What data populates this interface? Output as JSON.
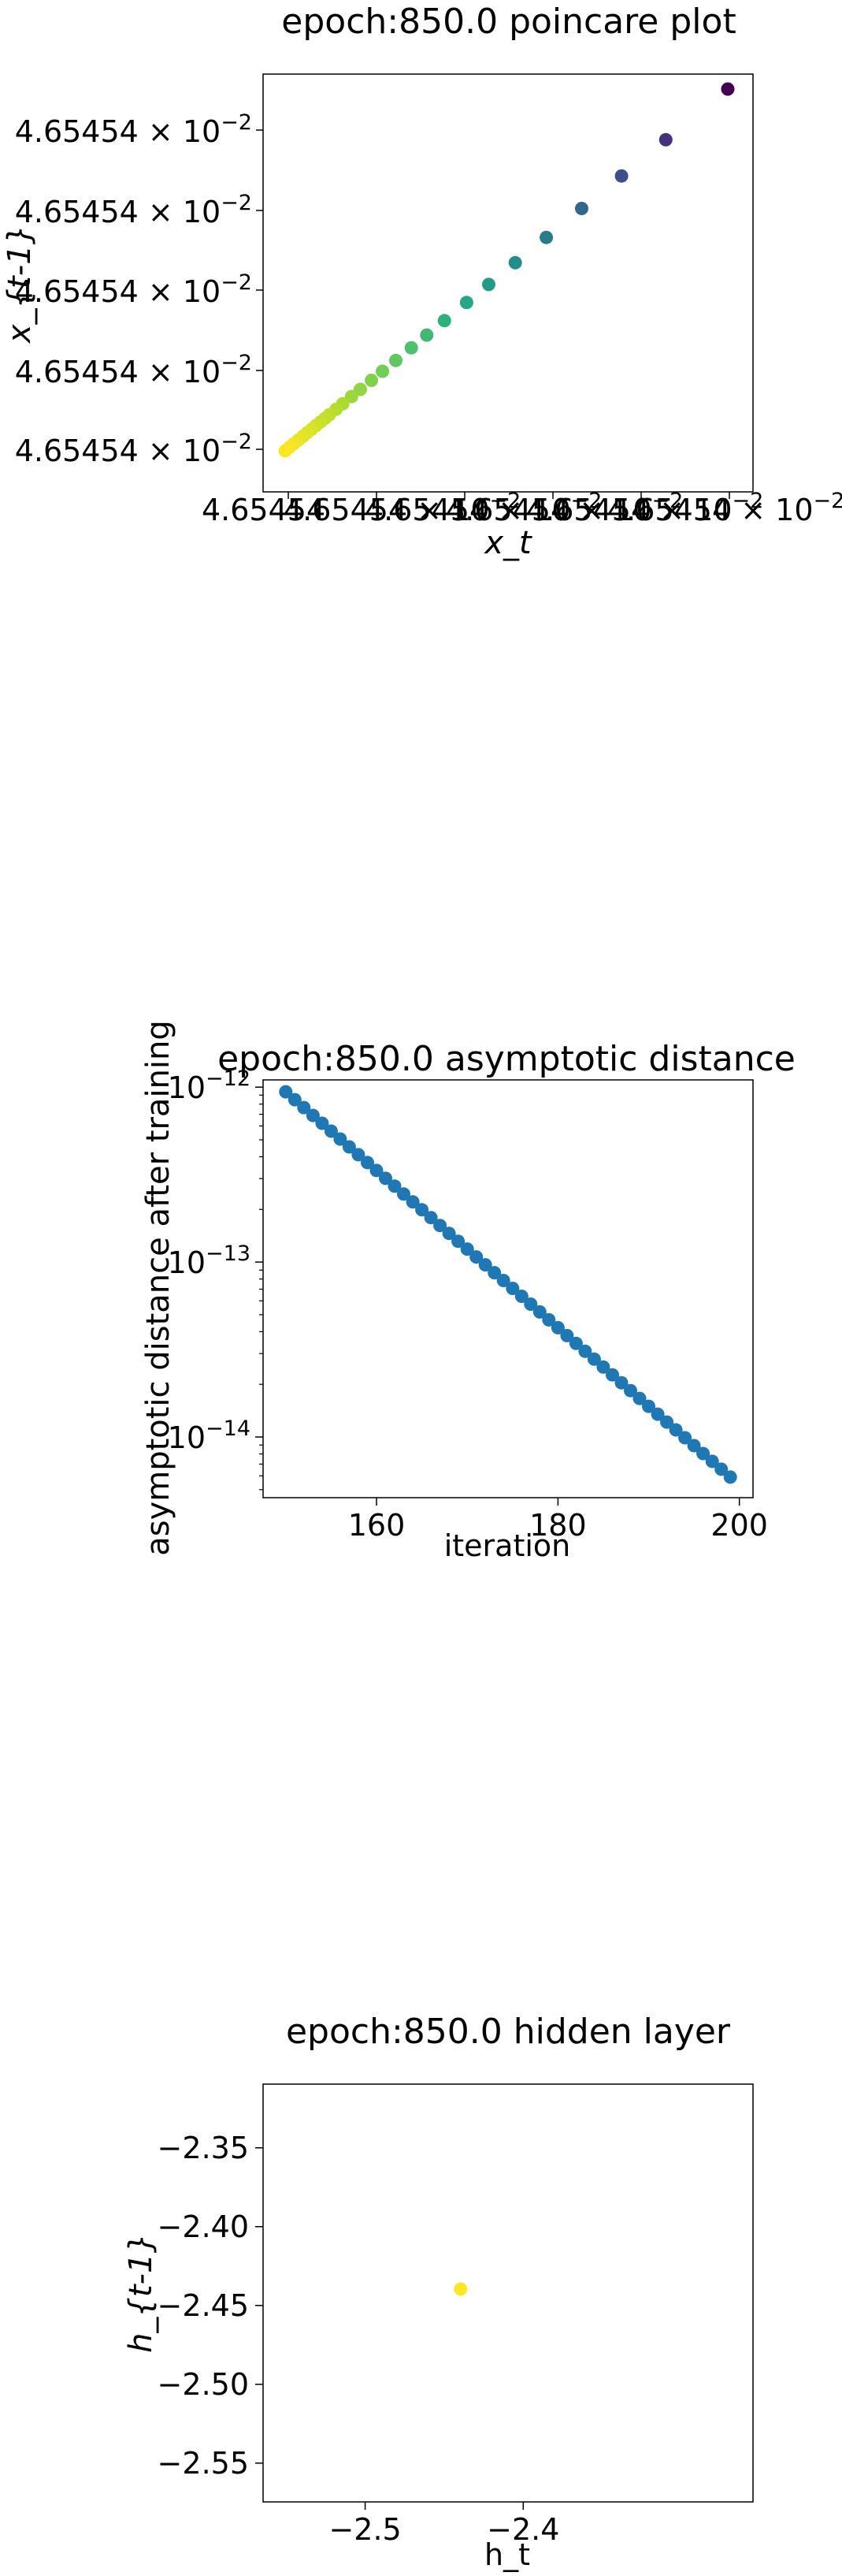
{
  "colors": {
    "viridis": [
      "#440154",
      "#472d7b",
      "#3b528b",
      "#2c728e",
      "#21918c",
      "#28ae80",
      "#5ec962",
      "#addc30",
      "#fde725"
    ],
    "series_blue": "#1f77b4",
    "hidden_point": "#fde725",
    "axis": "#000000"
  },
  "chart_data": [
    {
      "type": "scatter",
      "title": "epoch:850.0 poincare plot",
      "xlabel": "x_t",
      "ylabel": "x_{t-1}",
      "x_tick_labels": [
        "4.65454",
        "4.65454 × 10",
        "4.65454 × 10",
        "4.65454 × 10",
        "4.65454 × 10",
        "4.65454 × 10"
      ],
      "y_tick_labels": [
        "4.65454 × 10",
        "4.65454 × 10",
        "4.65454 × 10",
        "4.65454 × 10",
        "4.65454 × 10"
      ],
      "tick_exponent": "−2",
      "color_map": "viridis",
      "x": [
        0.0,
        0.01,
        0.02,
        0.03,
        0.04,
        0.05,
        0.06,
        0.07,
        0.08,
        0.09,
        0.1,
        0.115,
        0.13,
        0.15,
        0.17,
        0.195,
        0.22,
        0.25,
        0.285,
        0.32,
        0.36,
        0.41,
        0.46,
        0.52,
        0.59,
        0.67,
        0.76,
        0.86,
        1.0
      ],
      "y": [
        0.0,
        0.01,
        0.02,
        0.03,
        0.04,
        0.05,
        0.06,
        0.07,
        0.08,
        0.09,
        0.1,
        0.115,
        0.13,
        0.15,
        0.17,
        0.195,
        0.22,
        0.25,
        0.285,
        0.32,
        0.36,
        0.41,
        0.46,
        0.52,
        0.59,
        0.67,
        0.76,
        0.86,
        1.0
      ]
    },
    {
      "type": "scatter",
      "title": "epoch:850.0 asymptotic distance",
      "xlabel": "iteration",
      "ylabel": "asymptotic distance after training",
      "yscale": "log",
      "xlim": [
        147.5,
        201.5
      ],
      "ylim": [
        4.5e-15,
        1.1e-12
      ],
      "x_ticks": [
        160,
        180,
        200
      ],
      "y_ticks": [
        1e-14,
        1e-13,
        1e-12
      ],
      "y_tick_base": "10",
      "y_tick_exponents": [
        "−14",
        "−13",
        "−12"
      ],
      "x_start": 150,
      "x_end": 199,
      "y_start": 9.4e-13,
      "y_end": 5.9e-15
    },
    {
      "type": "scatter",
      "title": "epoch:850.0 hidden layer",
      "xlabel": "h_t",
      "ylabel": "h_{t-1}",
      "xlim": [
        -2.5646,
        -2.2546
      ],
      "ylim": [
        -2.5746,
        -2.3096
      ],
      "x_ticks": [
        -2.5,
        -2.4
      ],
      "x_tick_labels": [
        "−2.5",
        "−2.4"
      ],
      "y_ticks": [
        -2.35,
        -2.4,
        -2.45,
        -2.5,
        -2.55
      ],
      "y_tick_labels": [
        "−2.35",
        "−2.40",
        "−2.45",
        "−2.50",
        "−2.55"
      ],
      "points": [
        {
          "x": -2.4396,
          "y": -2.4396
        }
      ]
    }
  ]
}
